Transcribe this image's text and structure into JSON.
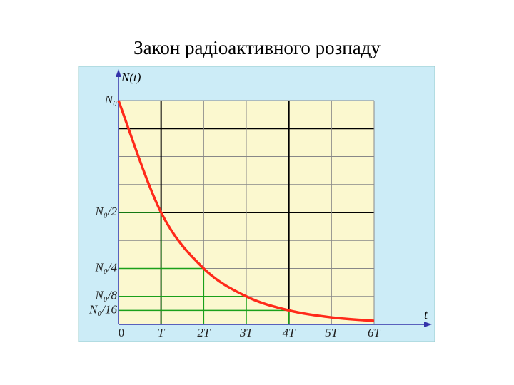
{
  "chart_data": {
    "type": "line",
    "title": "Закон радіоактивного розпаду",
    "y_label": "N(t)",
    "x_label": "t",
    "x": [
      0,
      1,
      2,
      3,
      4,
      5,
      6
    ],
    "series": [
      {
        "color": "#ff2a1a",
        "values": [
          1,
          0.5,
          0.25,
          0.125,
          0.0625,
          0.03125,
          0.015625
        ]
      }
    ],
    "xlim": [
      0,
      6
    ],
    "xticks": [
      0,
      {
        "value": 1,
        "label": "T"
      },
      {
        "value": 2,
        "label": "2T"
      },
      {
        "value": 3,
        "label": "3T"
      },
      {
        "value": 4,
        "label": "4T"
      },
      {
        "value": 5,
        "label": "5T"
      },
      {
        "value": 6,
        "label": "6T"
      }
    ],
    "ylim": [
      0,
      1
    ],
    "yticks": [
      {
        "value": 1,
        "label": "N₀"
      },
      {
        "value": 0.5,
        "label": "N₀/2"
      },
      {
        "value": 0.25,
        "label": "N₀/4"
      },
      {
        "value": 0.125,
        "label": "N₀/8"
      },
      {
        "value": 0.0625,
        "label": "N₀/16"
      }
    ],
    "grid": true
  }
}
